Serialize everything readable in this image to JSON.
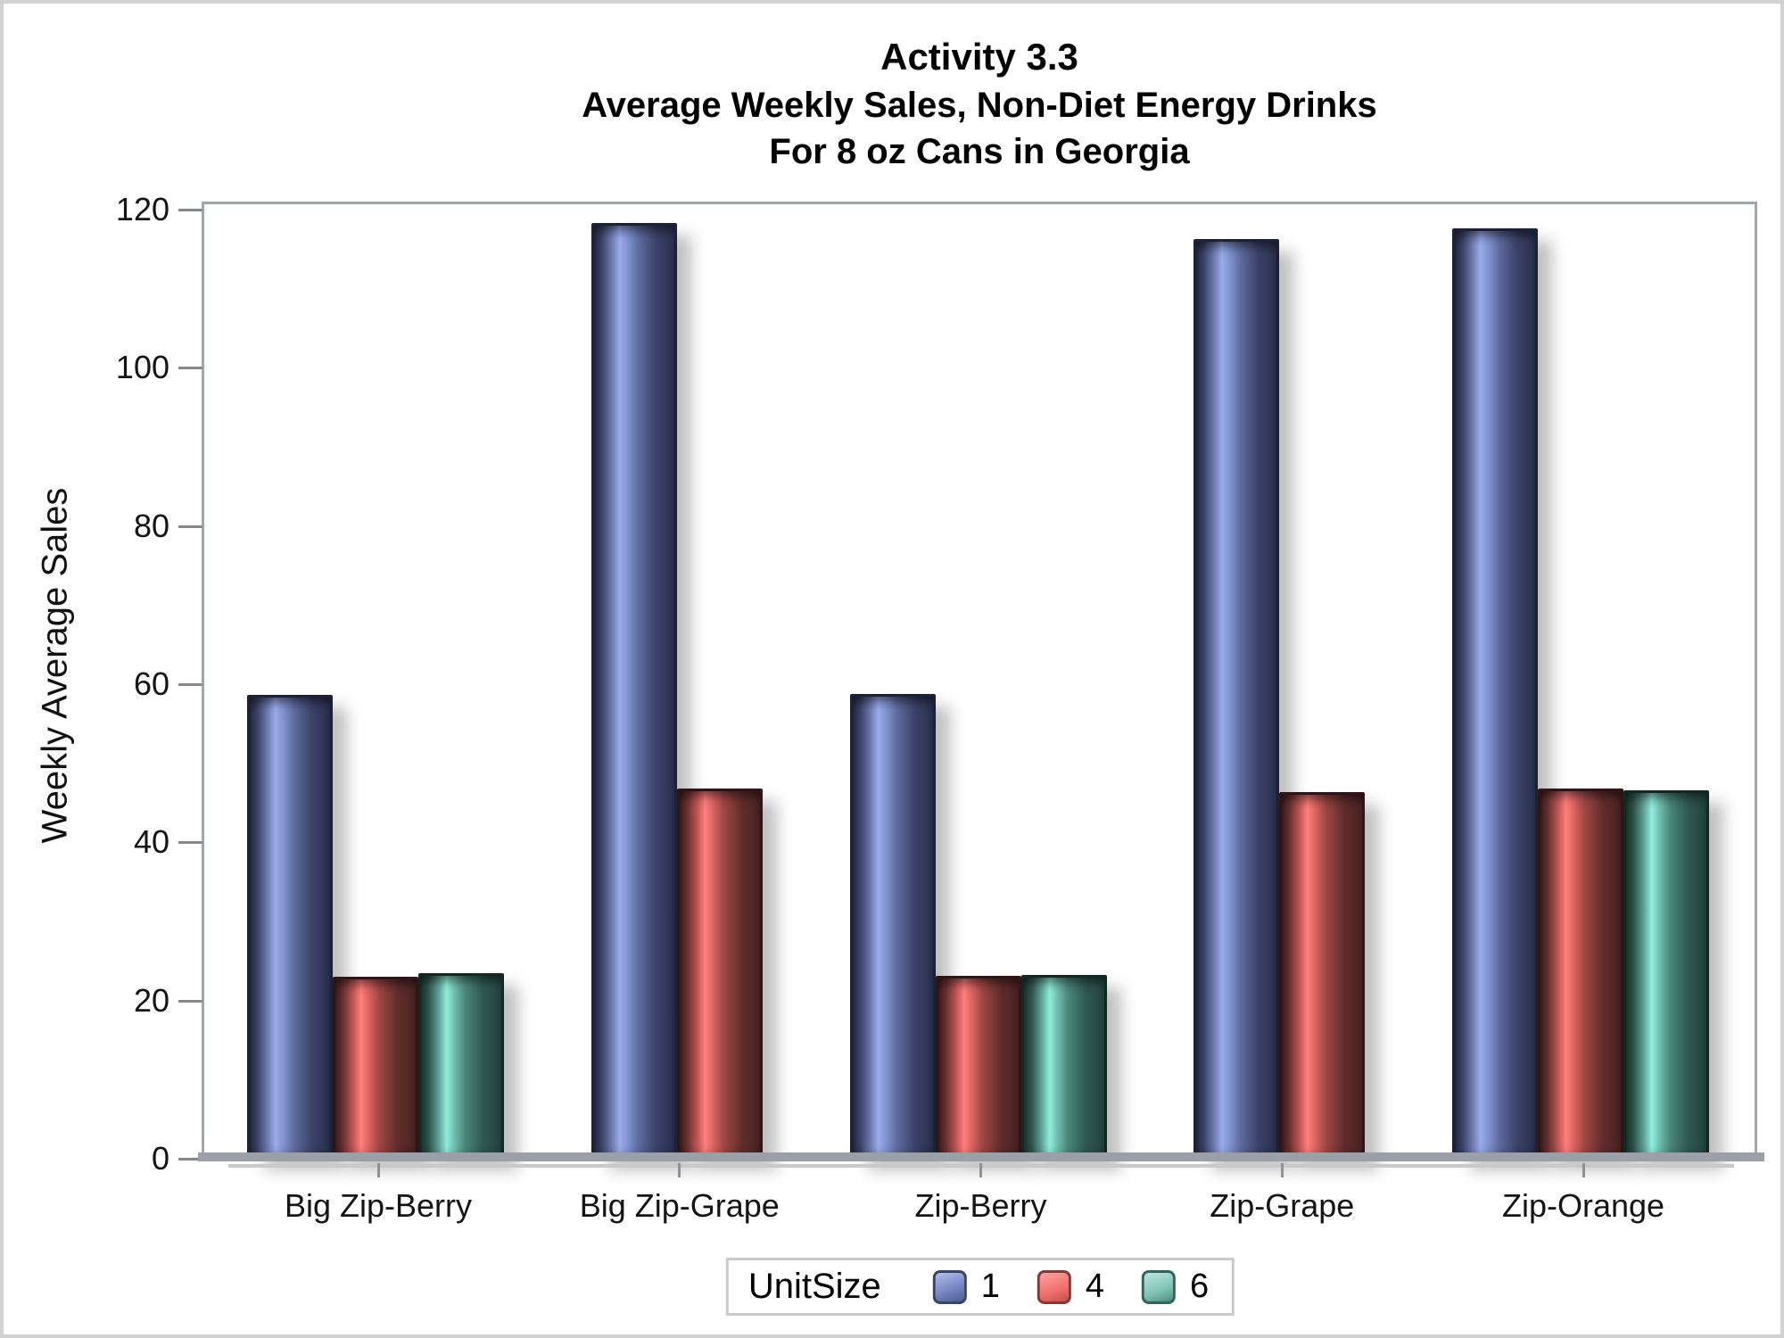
{
  "chart_data": {
    "type": "bar",
    "title_lines": [
      "Activity 3.3",
      "Average Weekly Sales, Non-Diet Energy Drinks",
      "For 8 oz Cans in Georgia"
    ],
    "ylabel": "Weekly Average Sales",
    "xlabel": "",
    "ylim": [
      0,
      120
    ],
    "yticks": [
      0,
      20,
      40,
      60,
      80,
      100,
      120
    ],
    "categories": [
      "Big Zip-Berry",
      "Big Zip-Grape",
      "Zip-Berry",
      "Zip-Grape",
      "Zip-Orange"
    ],
    "series": [
      {
        "name": "1",
        "values": [
          59,
          118.7,
          59.1,
          116.6,
          118
        ]
      },
      {
        "name": "4",
        "values": [
          23.4,
          47.1,
          23.5,
          46.7,
          47.1
        ]
      },
      {
        "name": "6",
        "values": [
          23.8,
          null,
          23.6,
          null,
          46.9
        ]
      }
    ],
    "legend": {
      "title": "UnitSize",
      "entries": [
        "1",
        "4",
        "6"
      ],
      "position": "bottom"
    },
    "colors": {
      "1": "#7c8cc8",
      "4": "#e86a68",
      "6": "#7fc8b8"
    },
    "grid": false
  }
}
